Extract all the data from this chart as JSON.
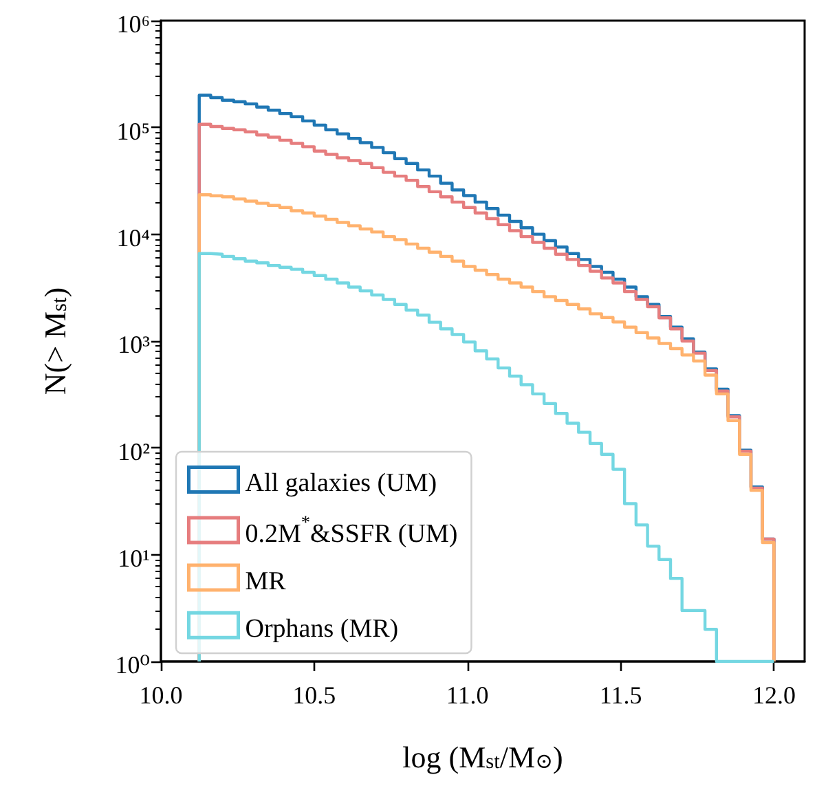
{
  "chart_data": {
    "type": "histogram",
    "xlabel": "log (M$_{st}$/M$_{⊙}$)",
    "ylabel": "N(> M$_{st}$)",
    "bins": [
      10.125,
      10.1625,
      10.2,
      10.2375,
      10.275,
      10.3125,
      10.35,
      10.3875,
      10.425,
      10.4625,
      10.5,
      10.5375,
      10.575,
      10.6125,
      10.65,
      10.6875,
      10.725,
      10.7625,
      10.8,
      10.8375,
      10.875,
      10.9125,
      10.95,
      10.9875,
      11.025,
      11.0625,
      11.1,
      11.1375,
      11.175,
      11.2125,
      11.25,
      11.2875,
      11.325,
      11.3625,
      11.4,
      11.4375,
      11.475,
      11.5125,
      11.55,
      11.5875,
      11.625,
      11.6625,
      11.7,
      11.7375,
      11.775,
      11.8125,
      11.85,
      11.8875,
      11.925,
      11.9625,
      12.0
    ],
    "series": [
      {
        "name": "All galaxies (UM)",
        "color": "#1f77b4",
        "values": [
          200000,
          190000,
          180000,
          174000,
          166000,
          155000,
          145000,
          135000,
          126000,
          115000,
          105000,
          95000,
          87000,
          79000,
          72000,
          65000,
          58000,
          51000,
          46000,
          40000,
          35000,
          30000,
          26000,
          23000,
          20000,
          17400,
          15100,
          13200,
          11500,
          10000,
          8700,
          7600,
          6600,
          5800,
          5000,
          4400,
          3800,
          3200,
          2600,
          2200,
          1700,
          1350,
          1050,
          790,
          550,
          355,
          200,
          95,
          43,
          14
        ]
      },
      {
        "name": "0.2M$^{*}$&SSFR (UM)",
        "color": "#e67d7e",
        "values": [
          107000,
          102000,
          98000,
          95000,
          91000,
          85000,
          81000,
          76000,
          71000,
          66000,
          60000,
          56000,
          52000,
          49000,
          46000,
          42000,
          38000,
          35000,
          32000,
          28000,
          25000,
          22400,
          20000,
          17800,
          15800,
          14000,
          12300,
          10800,
          9500,
          8400,
          7400,
          6500,
          5800,
          5100,
          4500,
          3900,
          3500,
          2900,
          2450,
          2100,
          1650,
          1300,
          1000,
          770,
          530,
          340,
          195,
          93,
          42,
          14
        ]
      },
      {
        "name": "MR",
        "color": "#ffb26e",
        "values": [
          23400,
          22900,
          22400,
          21400,
          20400,
          19500,
          18600,
          17800,
          16600,
          15800,
          14800,
          13800,
          12900,
          12000,
          11200,
          10500,
          9500,
          8900,
          8100,
          7400,
          6800,
          6200,
          5600,
          5000,
          4600,
          4200,
          3800,
          3500,
          3200,
          2900,
          2600,
          2400,
          2200,
          2000,
          1800,
          1660,
          1510,
          1350,
          1200,
          1070,
          950,
          850,
          740,
          650,
          480,
          320,
          180,
          87,
          40,
          13
        ]
      },
      {
        "name": "Orphans (MR)",
        "color": "#74d7e2",
        "values": [
          6600,
          6500,
          6200,
          5900,
          5600,
          5400,
          5100,
          4900,
          4700,
          4400,
          4100,
          3800,
          3500,
          3200,
          2950,
          2700,
          2450,
          2200,
          1950,
          1750,
          1500,
          1300,
          1150,
          980,
          810,
          680,
          560,
          470,
          390,
          320,
          260,
          210,
          170,
          140,
          110,
          87,
          63,
          30,
          19,
          12,
          9,
          6,
          3,
          3,
          2,
          null,
          null,
          null,
          null,
          null
        ]
      }
    ],
    "xlim": [
      10,
      12.1
    ],
    "xticks": [
      {
        "value": 10,
        "label": "10.0"
      },
      {
        "value": 10.5,
        "label": "10.5"
      },
      {
        "value": 11,
        "label": "11.0"
      },
      {
        "value": 11.5,
        "label": "11.5"
      },
      {
        "value": 12,
        "label": "12.0"
      }
    ],
    "ylim": [
      1,
      1000000
    ],
    "yticks": [
      {
        "value": 1,
        "label": "10⁰"
      },
      {
        "value": 10,
        "label": "10¹"
      },
      {
        "value": 100,
        "label": "10²"
      },
      {
        "value": 1000,
        "label": "10³"
      },
      {
        "value": 10000,
        "label": "10⁴"
      },
      {
        "value": 100000,
        "label": "10⁵"
      },
      {
        "value": 1000000,
        "label": "10⁶"
      }
    ],
    "log": "y",
    "grid": false,
    "legend": "bottom left"
  }
}
